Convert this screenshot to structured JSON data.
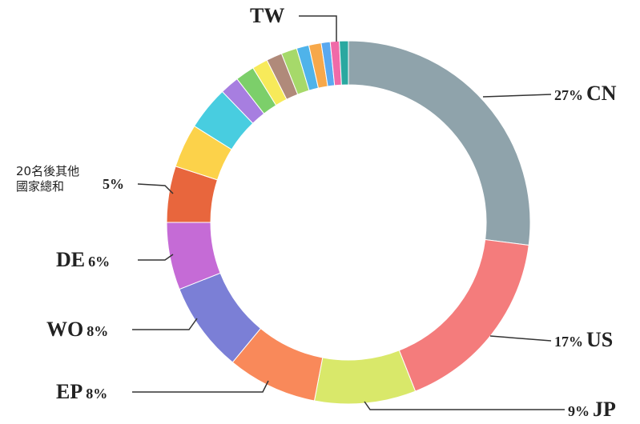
{
  "chart_data": {
    "type": "donut",
    "categories": [
      "CN",
      "US",
      "JP",
      "EP",
      "WO",
      "DE",
      "20名後其他國家總和",
      null,
      null,
      null,
      null,
      null,
      null,
      null,
      null,
      null,
      null,
      null,
      "TW"
    ],
    "values": [
      27,
      17,
      9,
      8,
      8,
      6,
      5,
      3.9,
      3.9,
      1.7,
      1.7,
      1.4,
      1.4,
      1.4,
      1.1,
      1.1,
      0.8,
      0.8,
      0.8
    ],
    "value_labels": [
      "27%",
      "17%",
      "9%",
      "8%",
      "8%",
      "6%",
      "5%",
      null,
      null,
      null,
      null,
      null,
      null,
      null,
      null,
      null,
      null,
      null,
      null
    ],
    "colors": [
      "#8fa3ab",
      "#f47c7c",
      "#d9e86a",
      "#f9895a",
      "#7b7fd6",
      "#c56bd6",
      "#e8663d",
      "#fcd24a",
      "#48cde0",
      "#a77ee0",
      "#7ccf6a",
      "#f7ea5a",
      "#b08a7a",
      "#a6d96a",
      "#4fb3ea",
      "#f7a84a",
      "#5aa9f0",
      "#f06aa8",
      "#2aa8a0"
    ]
  }
}
